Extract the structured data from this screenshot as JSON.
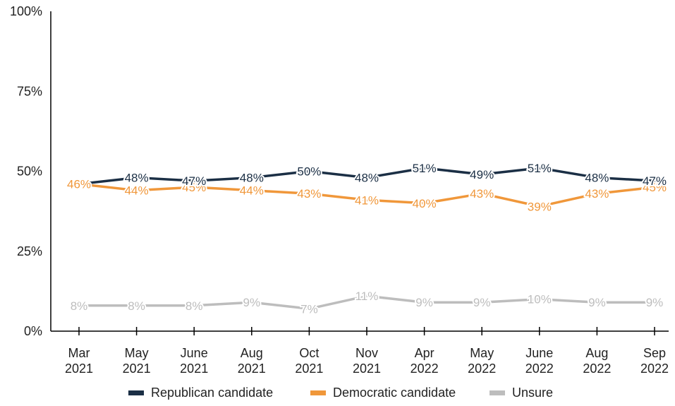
{
  "chart_data": {
    "type": "line",
    "title": "",
    "xlabel": "",
    "ylabel": "",
    "ylim": [
      0,
      100
    ],
    "yticks": [
      "0%",
      "25%",
      "50%",
      "75%",
      "100%"
    ],
    "ytick_values": [
      0,
      25,
      50,
      75,
      100
    ],
    "categories": [
      [
        "Mar",
        "2021"
      ],
      [
        "May",
        "2021"
      ],
      [
        "June",
        "2021"
      ],
      [
        "Aug",
        "2021"
      ],
      [
        "Oct",
        "2021"
      ],
      [
        "Nov",
        "2021"
      ],
      [
        "Apr",
        "2022"
      ],
      [
        "May",
        "2022"
      ],
      [
        "June",
        "2022"
      ],
      [
        "Aug",
        "2022"
      ],
      [
        "Sep",
        "2022"
      ]
    ],
    "grid": false,
    "legend_position": "bottom",
    "series": [
      {
        "name": "Republican candidate",
        "color": "#1b2f45",
        "values": [
          46,
          48,
          47,
          48,
          50,
          48,
          51,
          49,
          51,
          48,
          47
        ],
        "labels": [
          "",
          "48%",
          "47%",
          "48%",
          "50%",
          "48%",
          "51%",
          "49%",
          "51%",
          "48%",
          "47%"
        ]
      },
      {
        "name": "Democratic candidate",
        "color": "#f0973a",
        "values": [
          46,
          44,
          45,
          44,
          43,
          41,
          40,
          43,
          39,
          43,
          45
        ],
        "labels": [
          "46%",
          "44%",
          "45%",
          "44%",
          "43%",
          "41%",
          "40%",
          "43%",
          "39%",
          "43%",
          "45%"
        ]
      },
      {
        "name": "Unsure",
        "color": "#bdbdbd",
        "values": [
          8,
          8,
          8,
          9,
          7,
          11,
          9,
          9,
          10,
          9,
          9
        ],
        "labels": [
          "8%",
          "8%",
          "8%",
          "9%",
          "7%",
          "11%",
          "9%",
          "9%",
          "10%",
          "9%",
          "9%"
        ]
      }
    ]
  }
}
